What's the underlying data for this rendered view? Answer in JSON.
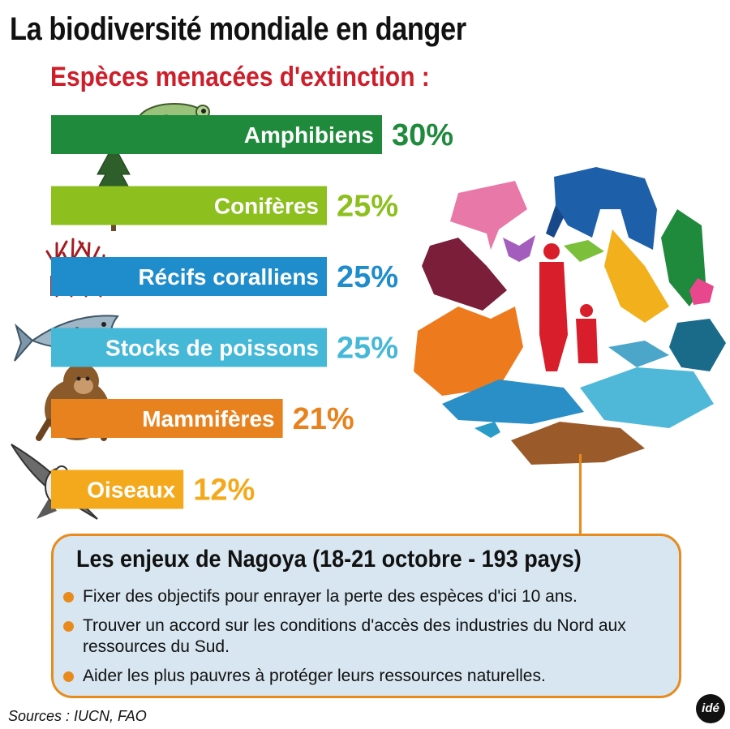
{
  "title": "La biodiversité mondiale en danger",
  "subtitle": "Espèces menacées d'extinction :",
  "chart_data": {
    "type": "bar",
    "orientation": "horizontal",
    "categories": [
      "Amphibiens",
      "Conifères",
      "Récifs coralliens",
      "Stocks de poissons",
      "Mammifères",
      "Oiseaux"
    ],
    "values": [
      30,
      25,
      25,
      25,
      21,
      12
    ],
    "value_labels": [
      "30%",
      "25%",
      "25%",
      "25%",
      "21%",
      "12%"
    ],
    "unit": "%",
    "colors": [
      "#1f8a3c",
      "#8dbf1f",
      "#1f8ccc",
      "#45b8d8",
      "#e8821e",
      "#f4a91c"
    ],
    "icons": [
      "frog-icon",
      "conifer-tree-icon",
      "coral-icon",
      "fish-icon",
      "monkey-icon",
      "eagle-icon"
    ],
    "grid": false,
    "legend": "none"
  },
  "panel": {
    "title": "Les enjeux de Nagoya (18-21 octobre - 193 pays)",
    "bullets": [
      "Fixer des objectifs pour enrayer la perte des espèces d'ici 10 ans.",
      "Trouver un accord sur les conditions d'accès des industries du Nord aux ressources du Sud.",
      "Aider les plus pauvres à protéger leurs ressources naturelles."
    ],
    "accent": "#e88a1c",
    "background": "#d7e6f0"
  },
  "sources": "Sources : IUCN, FAO",
  "logo": "idé"
}
